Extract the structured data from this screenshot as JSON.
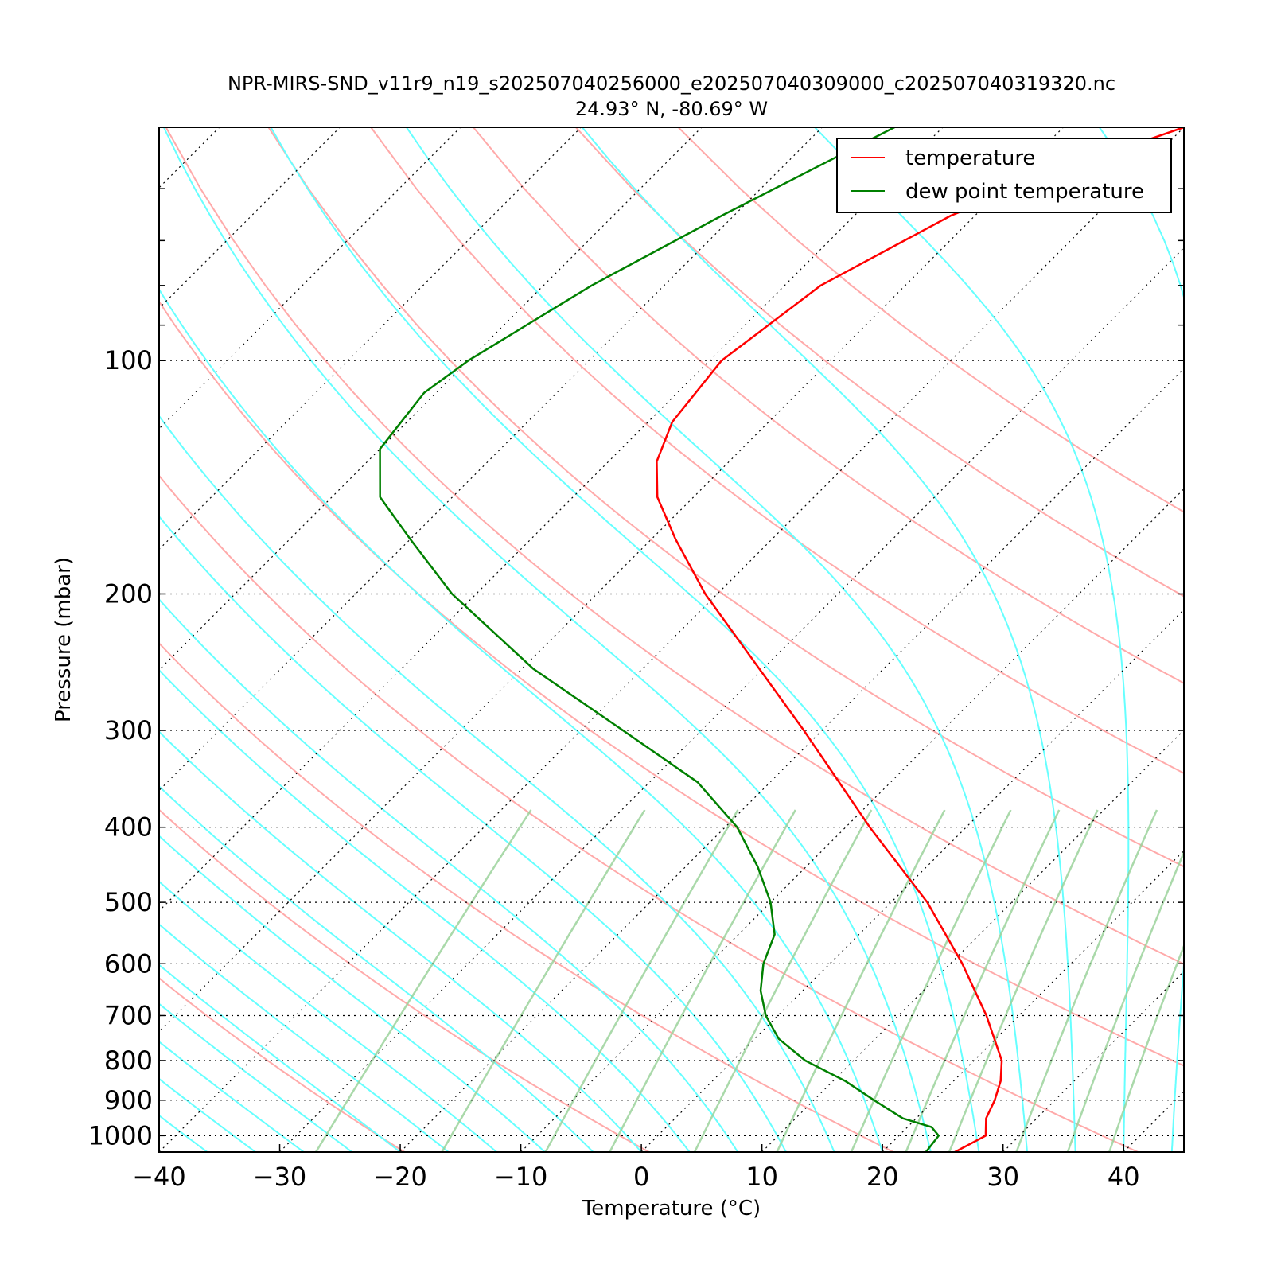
{
  "chart_data": {
    "type": "line",
    "title": "NPR-MIRS-SND_v11r9_n19_s202507040256000_e202507040309000_c202507040319320.nc",
    "subtitle": "24.93° N, -80.69° W",
    "xlabel": "Temperature (°C)",
    "ylabel": "Pressure (mbar)",
    "xlim": [
      -40,
      45
    ],
    "ylim": [
      1050,
      50
    ],
    "y_scale": "log",
    "skew": "skew-T log-p",
    "x_ticks": [
      -40,
      -30,
      -20,
      -10,
      0,
      10,
      20,
      30,
      40
    ],
    "x_tick_labels": [
      "−40",
      "−30",
      "−20",
      "−10",
      "0",
      "10",
      "20",
      "30",
      "40"
    ],
    "y_ticks": [
      100,
      200,
      300,
      400,
      500,
      600,
      700,
      800,
      900,
      1000
    ],
    "y_tick_labels": [
      "100",
      "200",
      "300",
      "400",
      "500",
      "600",
      "700",
      "800",
      "900",
      "1000"
    ],
    "grid": "isobars and skewed isotherms (dotted)",
    "legend_position": "top-right",
    "colors": {
      "temperature": "#ff0000",
      "dewpoint": "#008000",
      "dry_adiabat": "#ffaaaa",
      "moist_adiabat": "#66ffff",
      "mixing_ratio": "#9bd29b",
      "grid": "#000000"
    },
    "series": [
      {
        "name": "temperature",
        "color": "#ff0000",
        "points": [
          {
            "p": 1050,
            "t": 26.0
          },
          {
            "p": 1000,
            "t": 27.2
          },
          {
            "p": 950,
            "t": 25.8
          },
          {
            "p": 900,
            "t": 25.0
          },
          {
            "p": 850,
            "t": 23.9
          },
          {
            "p": 800,
            "t": 22.3
          },
          {
            "p": 700,
            "t": 17.3
          },
          {
            "p": 600,
            "t": 11.0
          },
          {
            "p": 500,
            "t": 3.0
          },
          {
            "p": 400,
            "t": -8.0
          },
          {
            "p": 300,
            "t": -21.5
          },
          {
            "p": 200,
            "t": -41.0
          },
          {
            "p": 170,
            "t": -48.0
          },
          {
            "p": 150,
            "t": -53.0
          },
          {
            "p": 135,
            "t": -56.0
          },
          {
            "p": 120,
            "t": -58.0
          },
          {
            "p": 100,
            "t": -59.0
          },
          {
            "p": 80,
            "t": -57.0
          },
          {
            "p": 65,
            "t": -52.0
          },
          {
            "p": 55,
            "t": -45.0
          },
          {
            "p": 50,
            "t": -40.0
          }
        ]
      },
      {
        "name": "dew point temperature",
        "color": "#008000",
        "points": [
          {
            "p": 1050,
            "t": 23.6
          },
          {
            "p": 1000,
            "t": 23.3
          },
          {
            "p": 975,
            "t": 22.0
          },
          {
            "p": 950,
            "t": 18.9
          },
          {
            "p": 900,
            "t": 15.0
          },
          {
            "p": 850,
            "t": 11.0
          },
          {
            "p": 800,
            "t": 6.0
          },
          {
            "p": 750,
            "t": 2.0
          },
          {
            "p": 700,
            "t": -1.0
          },
          {
            "p": 650,
            "t": -3.5
          },
          {
            "p": 600,
            "t": -5.5
          },
          {
            "p": 550,
            "t": -7.0
          },
          {
            "p": 500,
            "t": -10.0
          },
          {
            "p": 450,
            "t": -14.0
          },
          {
            "p": 400,
            "t": -19.0
          },
          {
            "p": 350,
            "t": -26.0
          },
          {
            "p": 300,
            "t": -36.5
          },
          {
            "p": 250,
            "t": -49.0
          },
          {
            "p": 200,
            "t": -62.0
          },
          {
            "p": 170,
            "t": -70.0
          },
          {
            "p": 150,
            "t": -76.0
          },
          {
            "p": 130,
            "t": -80.0
          },
          {
            "p": 110,
            "t": -81.0
          },
          {
            "p": 100,
            "t": -80.0
          },
          {
            "p": 80,
            "t": -76.0
          },
          {
            "p": 65,
            "t": -71.0
          },
          {
            "p": 50,
            "t": -64.0
          }
        ]
      }
    ]
  }
}
